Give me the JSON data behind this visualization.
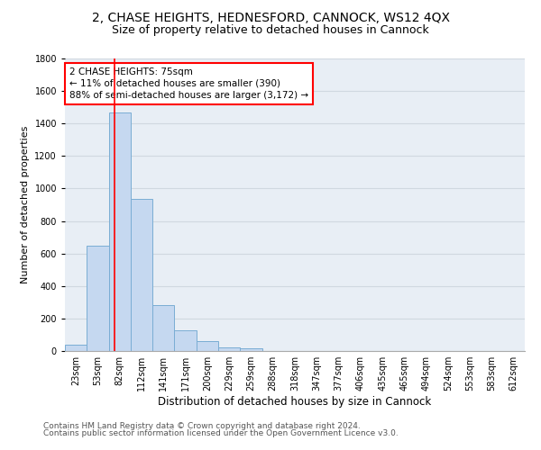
{
  "title": "2, CHASE HEIGHTS, HEDNESFORD, CANNOCK, WS12 4QX",
  "subtitle": "Size of property relative to detached houses in Cannock",
  "xlabel": "Distribution of detached houses by size in Cannock",
  "ylabel": "Number of detached properties",
  "bar_labels": [
    "23sqm",
    "53sqm",
    "82sqm",
    "112sqm",
    "141sqm",
    "171sqm",
    "200sqm",
    "229sqm",
    "259sqm",
    "288sqm",
    "318sqm",
    "347sqm",
    "377sqm",
    "406sqm",
    "435sqm",
    "465sqm",
    "494sqm",
    "524sqm",
    "553sqm",
    "583sqm",
    "612sqm"
  ],
  "bar_values": [
    40,
    648,
    1470,
    938,
    285,
    128,
    62,
    22,
    15,
    0,
    0,
    0,
    0,
    0,
    0,
    0,
    0,
    0,
    0,
    0,
    0
  ],
  "bar_color": "#c5d8f0",
  "bar_edge_color": "#7aadd4",
  "vline_x": 1.75,
  "vline_color": "red",
  "annotation_text": "2 CHASE HEIGHTS: 75sqm\n← 11% of detached houses are smaller (390)\n88% of semi-detached houses are larger (3,172) →",
  "annotation_box_color": "white",
  "annotation_box_edge_color": "red",
  "ylim": [
    0,
    1800
  ],
  "yticks": [
    0,
    200,
    400,
    600,
    800,
    1000,
    1200,
    1400,
    1600,
    1800
  ],
  "grid_color": "#d0d8e0",
  "background_color": "#e8eef5",
  "footer_line1": "Contains HM Land Registry data © Crown copyright and database right 2024.",
  "footer_line2": "Contains public sector information licensed under the Open Government Licence v3.0.",
  "title_fontsize": 10,
  "subtitle_fontsize": 9,
  "xlabel_fontsize": 8.5,
  "ylabel_fontsize": 8,
  "tick_fontsize": 7,
  "annotation_fontsize": 7.5,
  "footer_fontsize": 6.5
}
